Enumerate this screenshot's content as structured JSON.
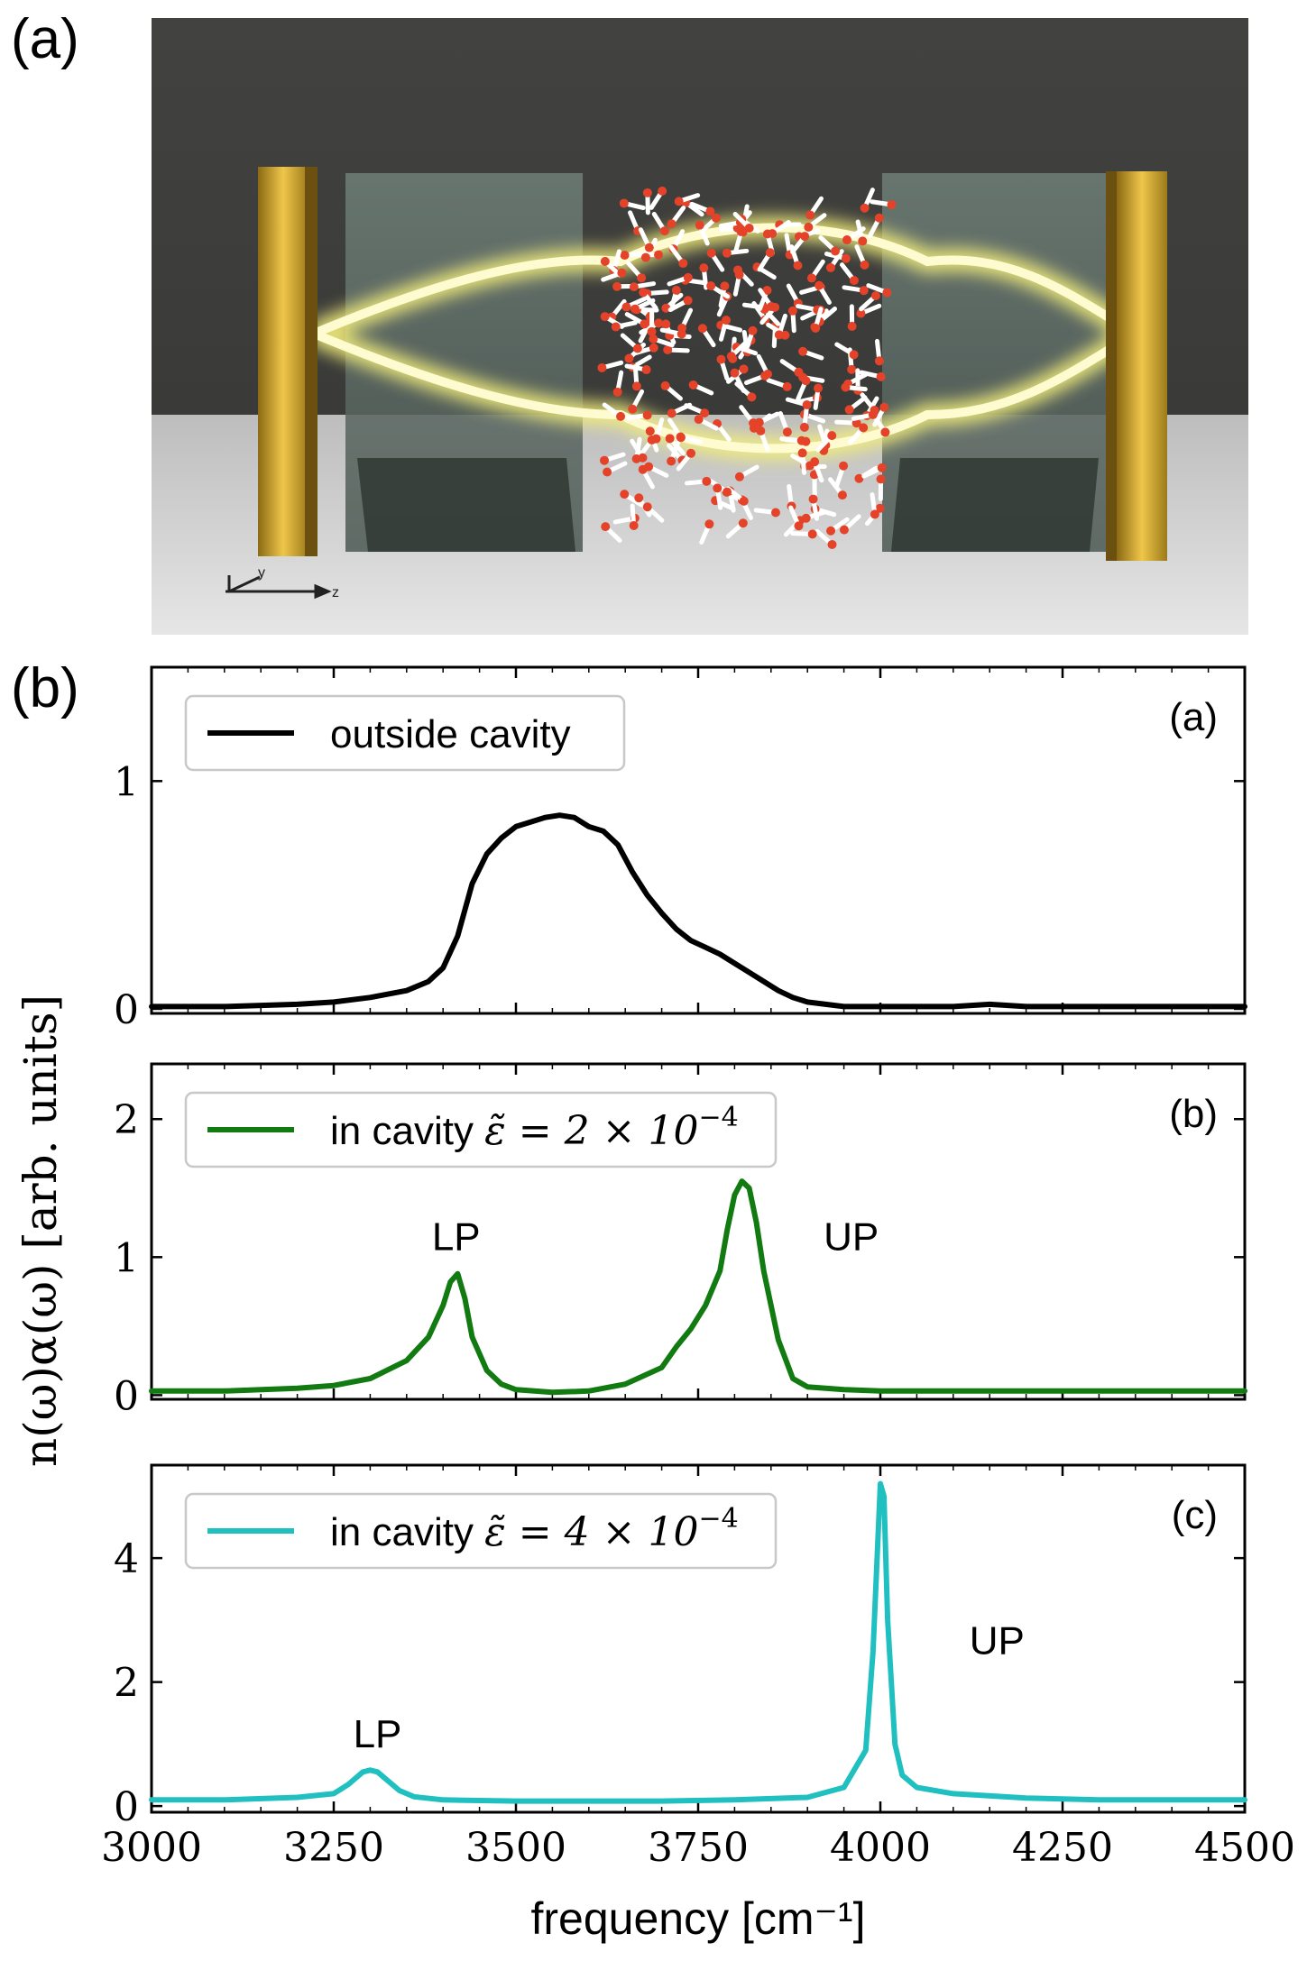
{
  "figure_labels": {
    "a": "(a)",
    "b": "(b)"
  },
  "scene": {
    "description_icon": "optical-cavity-render",
    "axis_labels": {
      "y": "y",
      "z": "z"
    },
    "colors": {
      "background": "#3d3d3b",
      "floor": "#cfcfcf",
      "mirror": "#c8a23a",
      "beam": "#f6f3a0",
      "oxygen": "#e4432a",
      "hydrogen": "#ffffff"
    }
  },
  "chart": {
    "ylabel": "n(ω)α(ω) [arb. units]",
    "xlabel": "frequency [cm⁻¹]",
    "xlim": [
      3000,
      4500
    ],
    "xticks": [
      "3000",
      "3250",
      "3500",
      "3750",
      "4000",
      "4250",
      "4500"
    ]
  },
  "chart_data": [
    {
      "type": "line",
      "panel_tag": "(a)",
      "legend": "outside cavity",
      "color": "#000000",
      "xlim": [
        3000,
        4500
      ],
      "ylim": [
        -0.02,
        1.5
      ],
      "yticks": [
        "0",
        "1"
      ],
      "x": [
        3000,
        3100,
        3200,
        3250,
        3300,
        3350,
        3380,
        3400,
        3420,
        3440,
        3460,
        3480,
        3500,
        3520,
        3540,
        3560,
        3580,
        3600,
        3620,
        3640,
        3660,
        3680,
        3700,
        3720,
        3740,
        3760,
        3780,
        3800,
        3820,
        3840,
        3860,
        3880,
        3900,
        3950,
        4000,
        4100,
        4150,
        4200,
        4300,
        4400,
        4500
      ],
      "y": [
        0.01,
        0.01,
        0.02,
        0.03,
        0.05,
        0.08,
        0.12,
        0.18,
        0.32,
        0.55,
        0.68,
        0.75,
        0.8,
        0.82,
        0.84,
        0.85,
        0.84,
        0.8,
        0.78,
        0.72,
        0.6,
        0.5,
        0.42,
        0.35,
        0.3,
        0.27,
        0.24,
        0.2,
        0.16,
        0.12,
        0.08,
        0.05,
        0.03,
        0.01,
        0.01,
        0.01,
        0.02,
        0.01,
        0.01,
        0.01,
        0.01
      ],
      "annotations": []
    },
    {
      "type": "line",
      "panel_tag": "(b)",
      "legend_prefix": "in cavity ",
      "legend_math": "ε̃ = 2 × 10",
      "legend_exp": "−4",
      "color": "#117a11",
      "xlim": [
        3000,
        4500
      ],
      "ylim": [
        -0.03,
        2.4
      ],
      "yticks": [
        "0",
        "1",
        "2"
      ],
      "x": [
        3000,
        3100,
        3200,
        3250,
        3300,
        3350,
        3380,
        3400,
        3410,
        3420,
        3430,
        3440,
        3460,
        3480,
        3500,
        3550,
        3600,
        3650,
        3700,
        3720,
        3740,
        3760,
        3780,
        3790,
        3800,
        3810,
        3820,
        3830,
        3840,
        3860,
        3880,
        3900,
        3950,
        4000,
        4100,
        4200,
        4300,
        4400,
        4500
      ],
      "y": [
        0.03,
        0.03,
        0.05,
        0.07,
        0.12,
        0.25,
        0.42,
        0.65,
        0.82,
        0.88,
        0.7,
        0.42,
        0.18,
        0.08,
        0.04,
        0.02,
        0.03,
        0.08,
        0.2,
        0.35,
        0.48,
        0.65,
        0.9,
        1.2,
        1.45,
        1.55,
        1.5,
        1.25,
        0.9,
        0.4,
        0.12,
        0.06,
        0.04,
        0.03,
        0.03,
        0.03,
        0.03,
        0.03,
        0.03
      ],
      "annotations": [
        {
          "text": "LP",
          "x": 3418,
          "y": 1.05
        },
        {
          "text": "UP",
          "x": 3960,
          "y": 1.05
        }
      ]
    },
    {
      "type": "line",
      "panel_tag": "(c)",
      "legend_prefix": "in cavity ",
      "legend_math": "ε̃ = 4 × 10",
      "legend_exp": "−4",
      "color": "#20c0c0",
      "xlim": [
        3000,
        4500
      ],
      "ylim": [
        -0.1,
        5.5
      ],
      "yticks": [
        "0",
        "2",
        "4"
      ],
      "x": [
        3000,
        3100,
        3200,
        3250,
        3270,
        3290,
        3300,
        3310,
        3320,
        3340,
        3360,
        3400,
        3500,
        3600,
        3700,
        3800,
        3900,
        3950,
        3980,
        3990,
        4000,
        4005,
        4010,
        4020,
        4030,
        4050,
        4100,
        4200,
        4300,
        4400,
        4500
      ],
      "y": [
        0.1,
        0.1,
        0.14,
        0.2,
        0.35,
        0.55,
        0.58,
        0.55,
        0.45,
        0.25,
        0.15,
        0.1,
        0.08,
        0.08,
        0.08,
        0.1,
        0.14,
        0.3,
        0.9,
        2.5,
        5.2,
        5.0,
        3.0,
        1.0,
        0.5,
        0.3,
        0.2,
        0.13,
        0.1,
        0.1,
        0.1
      ],
      "annotations": [
        {
          "text": "LP",
          "x": 3310,
          "y": 0.95
        },
        {
          "text": "UP",
          "x": 4160,
          "y": 2.45
        }
      ]
    }
  ]
}
